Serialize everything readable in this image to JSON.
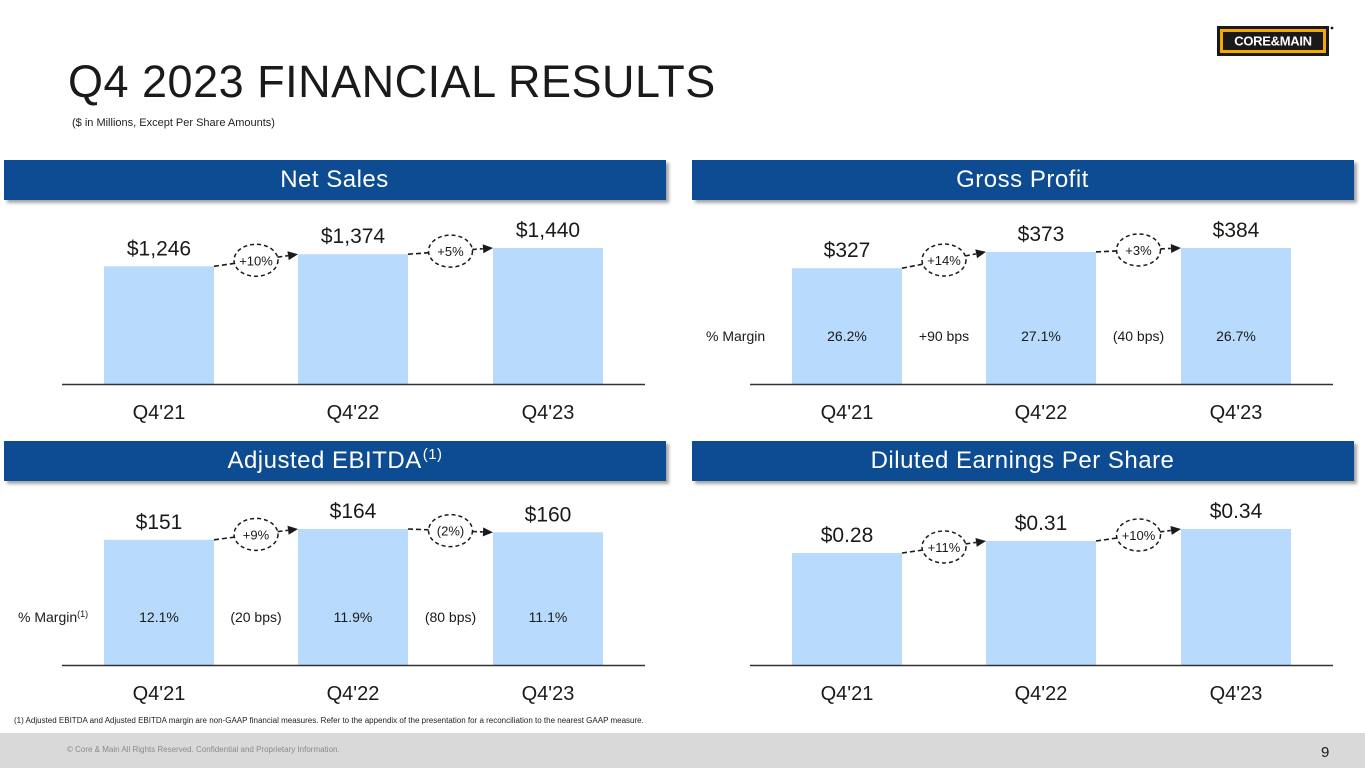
{
  "title": "Q4 2023 FINANCIAL RESULTS",
  "subtitle": "($ in Millions, Except Per Share Amounts)",
  "logo_text": "CORE&MAIN",
  "colors": {
    "header_bg": "#0d4c92",
    "bar": "#b8dafc",
    "axis": "#333333"
  },
  "chart_data": [
    {
      "id": "net-sales",
      "type": "bar",
      "title": "Net Sales",
      "title_sup": "",
      "categories": [
        "Q4'21",
        "Q4'22",
        "Q4'23"
      ],
      "values": [
        1246,
        1374,
        1440
      ],
      "value_labels": [
        "$1,246",
        "$1,374",
        "$1,440"
      ],
      "changes": [
        "+10%",
        "+5%"
      ],
      "margin_label": "",
      "margin_sup": "",
      "margins": [],
      "margin_changes": []
    },
    {
      "id": "gross-profit",
      "type": "bar",
      "title": "Gross Profit",
      "title_sup": "",
      "categories": [
        "Q4'21",
        "Q4'22",
        "Q4'23"
      ],
      "values": [
        327,
        373,
        384
      ],
      "value_labels": [
        "$327",
        "$373",
        "$384"
      ],
      "changes": [
        "+14%",
        "+3%"
      ],
      "margin_label": "% Margin",
      "margin_sup": "",
      "margins": [
        "26.2%",
        "27.1%",
        "26.7%"
      ],
      "margin_changes": [
        "+90 bps",
        "(40 bps)"
      ]
    },
    {
      "id": "adjusted-ebitda",
      "type": "bar",
      "title": "Adjusted EBITDA",
      "title_sup": "(1)",
      "categories": [
        "Q4'21",
        "Q4'22",
        "Q4'23"
      ],
      "values": [
        151,
        164,
        160
      ],
      "value_labels": [
        "$151",
        "$164",
        "$160"
      ],
      "changes": [
        "+9%",
        "(2%)"
      ],
      "margin_label": "% Margin",
      "margin_sup": "(1)",
      "margins": [
        "12.1%",
        "11.9%",
        "11.1%"
      ],
      "margin_changes": [
        "(20 bps)",
        "(80 bps)"
      ]
    },
    {
      "id": "diluted-eps",
      "type": "bar",
      "title": "Diluted Earnings Per Share",
      "title_sup": "",
      "categories": [
        "Q4'21",
        "Q4'22",
        "Q4'23"
      ],
      "values": [
        0.28,
        0.31,
        0.34
      ],
      "value_labels": [
        "$0.28",
        "$0.31",
        "$0.34"
      ],
      "changes": [
        "+11%",
        "+10%"
      ],
      "margin_label": "",
      "margin_sup": "",
      "margins": [],
      "margin_changes": []
    }
  ],
  "footnote": "(1) Adjusted EBITDA and Adjusted EBITDA margin are non-GAAP financial measures. Refer to the appendix of the presentation for a reconciliation to the nearest GAAP measure.",
  "copyright": "© Core & Main  All Rights Reserved. Confidential and Proprietary Information.",
  "page_number": "9"
}
